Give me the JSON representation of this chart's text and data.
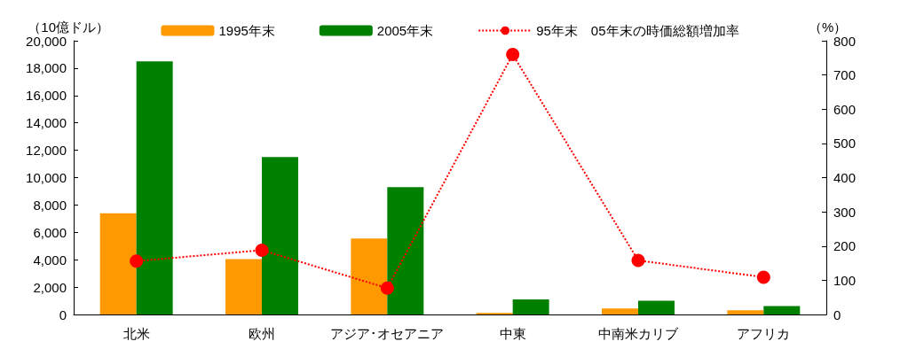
{
  "chart_data": {
    "type": "bar",
    "categories": [
      "北米",
      "欧州",
      "アジア･オセアニア",
      "中東",
      "中南米カリブ",
      "アフリカ"
    ],
    "ylabel": "（10億ドル）",
    "y2label": "（%）",
    "series": [
      {
        "name": "1995年末",
        "color": "#ff9900",
        "values": [
          7400,
          4050,
          5550,
          120,
          430,
          310
        ]
      },
      {
        "name": "2005年末",
        "color": "#008000",
        "values": [
          18500,
          11500,
          9300,
          1100,
          1000,
          620
        ]
      },
      {
        "name": "95年末　05年末の時価総額増加率",
        "type": "line",
        "axis": "y2",
        "color": "#ff0000",
        "marker": "circle",
        "line_style": "dotted",
        "values": [
          156,
          188,
          77,
          760,
          158,
          109
        ]
      }
    ],
    "ylim": [
      0,
      20000
    ],
    "yticks": [
      {
        "value": 0,
        "label": "0"
      },
      {
        "value": 2000,
        "label": "2,000"
      },
      {
        "value": 4000,
        "label": "4,000"
      },
      {
        "value": 6000,
        "label": "6,000"
      },
      {
        "value": 8000,
        "label": "8,000"
      },
      {
        "value": 10000,
        "label": "10,000"
      },
      {
        "value": 12000,
        "label": "12,000"
      },
      {
        "value": 14000,
        "label": "14,000"
      },
      {
        "value": 16000,
        "label": "16,000"
      },
      {
        "value": 18000,
        "label": "18,000"
      },
      {
        "value": 20000,
        "label": "20,000"
      }
    ],
    "y2lim": [
      0,
      800
    ],
    "y2ticks": [
      0,
      100,
      200,
      300,
      400,
      500,
      600,
      700,
      800
    ],
    "grid": false,
    "legend": "top"
  }
}
